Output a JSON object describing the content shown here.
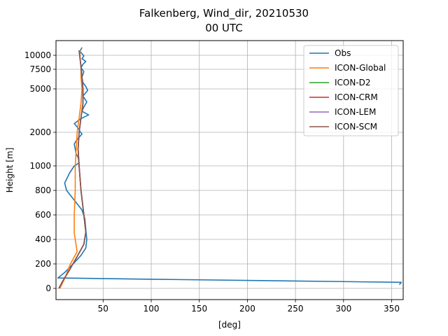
{
  "chart_data": {
    "type": "line",
    "title_line1": "Falkenberg, Wind_dir, 20210530",
    "title_line2": "00 UTC",
    "xlabel": "[deg]",
    "ylabel": "Height [m]",
    "xlim": [
      1,
      362
    ],
    "x_ticks": [
      50,
      100,
      150,
      200,
      250,
      300,
      350
    ],
    "y_ticks": [
      {
        "value": 0,
        "label": "0"
      },
      {
        "value": 200,
        "label": "200"
      },
      {
        "value": 400,
        "label": "400"
      },
      {
        "value": 600,
        "label": "600"
      },
      {
        "value": 800,
        "label": "800"
      },
      {
        "value": 1000,
        "label": "1000"
      },
      {
        "value": 2000,
        "label": "2000"
      },
      {
        "value": 5000,
        "label": "5000"
      },
      {
        "value": 7500,
        "label": "7500"
      },
      {
        "value": 10000,
        "label": "10000"
      }
    ],
    "grid": true,
    "legend_position": "top-right",
    "series": [
      {
        "name": "Obs",
        "color": "#1f77b4",
        "points": [
          [
            358,
            30
          ],
          [
            360,
            50
          ],
          [
            100,
            75
          ],
          [
            3,
            85
          ],
          [
            10,
            130
          ],
          [
            20,
            210
          ],
          [
            27,
            270
          ],
          [
            32,
            330
          ],
          [
            33,
            400
          ],
          [
            32,
            480
          ],
          [
            31,
            570
          ],
          [
            28,
            640
          ],
          [
            20,
            720
          ],
          [
            12,
            800
          ],
          [
            10,
            860
          ],
          [
            15,
            940
          ],
          [
            20,
            1000
          ],
          [
            23,
            1050
          ],
          [
            25,
            1100
          ],
          [
            24,
            1250
          ],
          [
            22,
            1350
          ],
          [
            21,
            1500
          ],
          [
            20,
            1650
          ],
          [
            22,
            1750
          ],
          [
            25,
            1850
          ],
          [
            28,
            1950
          ],
          [
            26,
            2050
          ],
          [
            25,
            2200
          ],
          [
            22,
            2450
          ],
          [
            20,
            2600
          ],
          [
            23,
            2750
          ],
          [
            26,
            2900
          ],
          [
            30,
            3050
          ],
          [
            35,
            3200
          ],
          [
            28,
            3450
          ],
          [
            30,
            3750
          ],
          [
            33,
            4100
          ],
          [
            29,
            4500
          ],
          [
            34,
            4900
          ],
          [
            32,
            5300
          ],
          [
            29,
            5800
          ],
          [
            28,
            6500
          ],
          [
            30,
            7200
          ],
          [
            27,
            7800
          ],
          [
            29,
            8400
          ],
          [
            32,
            8900
          ],
          [
            28,
            9400
          ],
          [
            30,
            9900
          ],
          [
            26,
            10400
          ],
          [
            28,
            10800
          ]
        ]
      },
      {
        "name": "ICON-Global",
        "color": "#ff7f0e",
        "points": [
          [
            5,
            0
          ],
          [
            10,
            80
          ],
          [
            16,
            200
          ],
          [
            23,
            300
          ],
          [
            20,
            450
          ],
          [
            20,
            600
          ],
          [
            21,
            800
          ],
          [
            21,
            1000
          ],
          [
            22,
            1500
          ],
          [
            23,
            2000
          ],
          [
            25,
            3000
          ],
          [
            27,
            4000
          ],
          [
            28,
            5000
          ],
          [
            27,
            6500
          ],
          [
            27,
            8000
          ],
          [
            26,
            9500
          ],
          [
            26,
            10500
          ]
        ]
      },
      {
        "name": "ICON-D2",
        "color": "#2ca02c",
        "points": [
          [
            4,
            0
          ],
          [
            8,
            60
          ],
          [
            15,
            150
          ],
          [
            23,
            260
          ],
          [
            30,
            360
          ],
          [
            32,
            460
          ],
          [
            30,
            600
          ],
          [
            27,
            800
          ],
          [
            25,
            1000
          ],
          [
            24,
            1500
          ],
          [
            25,
            2000
          ],
          [
            27,
            3000
          ],
          [
            29,
            4000
          ],
          [
            29,
            5000
          ],
          [
            28,
            6500
          ],
          [
            27,
            8000
          ],
          [
            26,
            9500
          ],
          [
            25,
            10500
          ]
        ]
      },
      {
        "name": "ICON-CRM",
        "color": "#d62728",
        "points": [
          [
            4,
            0
          ],
          [
            8,
            60
          ],
          [
            15,
            150
          ],
          [
            23,
            260
          ],
          [
            30,
            360
          ],
          [
            32,
            460
          ],
          [
            30,
            600
          ],
          [
            27,
            800
          ],
          [
            25,
            1000
          ],
          [
            24,
            1500
          ],
          [
            25,
            2000
          ],
          [
            27,
            3000
          ],
          [
            29,
            4000
          ],
          [
            29,
            5000
          ],
          [
            28,
            6500
          ],
          [
            27,
            8000
          ],
          [
            26,
            9500
          ],
          [
            25,
            10500
          ]
        ]
      },
      {
        "name": "ICON-LEM",
        "color": "#9467bd",
        "points": [
          [
            4,
            0
          ],
          [
            8,
            60
          ],
          [
            15,
            150
          ],
          [
            23,
            260
          ],
          [
            30,
            360
          ],
          [
            32,
            460
          ],
          [
            30,
            600
          ],
          [
            27,
            800
          ],
          [
            25,
            1000
          ],
          [
            24,
            1500
          ],
          [
            25,
            2000
          ],
          [
            27,
            3000
          ],
          [
            29,
            4000
          ],
          [
            29,
            5000
          ],
          [
            28,
            6500
          ],
          [
            27,
            8000
          ],
          [
            26,
            9500
          ],
          [
            25,
            10500
          ]
        ]
      },
      {
        "name": "ICON-SCM",
        "color": "#8c564b",
        "points": [
          [
            4,
            0
          ],
          [
            8,
            60
          ],
          [
            15,
            150
          ],
          [
            23,
            260
          ],
          [
            30,
            360
          ],
          [
            32,
            460
          ],
          [
            30,
            600
          ],
          [
            27,
            800
          ],
          [
            25,
            1000
          ],
          [
            24,
            1500
          ],
          [
            25,
            2000
          ],
          [
            27,
            3000
          ],
          [
            29,
            4000
          ],
          [
            29,
            5000
          ],
          [
            28,
            6500
          ],
          [
            27,
            8000
          ],
          [
            26,
            9500
          ],
          [
            25,
            10500
          ]
        ]
      }
    ]
  }
}
